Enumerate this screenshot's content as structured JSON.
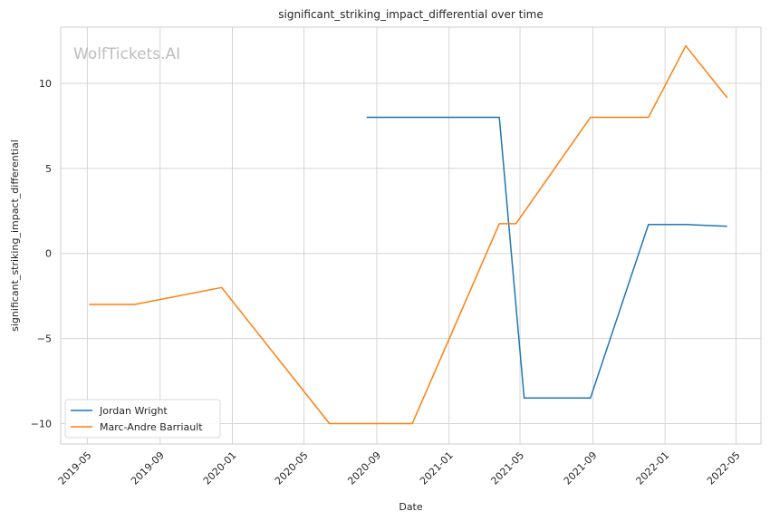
{
  "chart_data": {
    "type": "line",
    "title": "significant_striking_impact_differential over time",
    "xlabel": "Date",
    "ylabel": "significant_striking_impact_differential",
    "watermark": "WolfTickets.AI",
    "xlim": [
      "2019-03-17",
      "2022-06-12"
    ],
    "ylim": [
      -11.2,
      13.3
    ],
    "x_ticks": [
      "2019-05",
      "2019-09",
      "2020-01",
      "2020-05",
      "2020-09",
      "2021-01",
      "2021-05",
      "2021-09",
      "2022-01",
      "2022-05"
    ],
    "y_ticks": [
      -10,
      -5,
      0,
      5,
      10
    ],
    "grid": true,
    "legend_position": "lower-left",
    "series": [
      {
        "name": "Jordan Wright",
        "color": "#1f77b4",
        "points": [
          {
            "x": "2020-08-15",
            "y": 8.0
          },
          {
            "x": "2021-03-27",
            "y": 8.0
          },
          {
            "x": "2021-05-08",
            "y": -8.5
          },
          {
            "x": "2021-08-28",
            "y": -8.5
          },
          {
            "x": "2021-12-04",
            "y": 1.7
          },
          {
            "x": "2022-02-05",
            "y": 1.7
          },
          {
            "x": "2022-04-16",
            "y": 1.6
          }
        ]
      },
      {
        "name": "Marc-Andre Barriault",
        "color": "#ff7f0e",
        "points": [
          {
            "x": "2019-05-04",
            "y": -3.0
          },
          {
            "x": "2019-07-20",
            "y": -3.0
          },
          {
            "x": "2019-12-14",
            "y": -2.0
          },
          {
            "x": "2020-06-13",
            "y": -10.0
          },
          {
            "x": "2020-10-31",
            "y": -10.0
          },
          {
            "x": "2021-03-27",
            "y": 1.75
          },
          {
            "x": "2021-04-24",
            "y": 1.75
          },
          {
            "x": "2021-08-28",
            "y": 8.0
          },
          {
            "x": "2021-12-04",
            "y": 8.0
          },
          {
            "x": "2022-02-05",
            "y": 12.2
          },
          {
            "x": "2022-04-16",
            "y": 9.15
          }
        ]
      }
    ]
  }
}
